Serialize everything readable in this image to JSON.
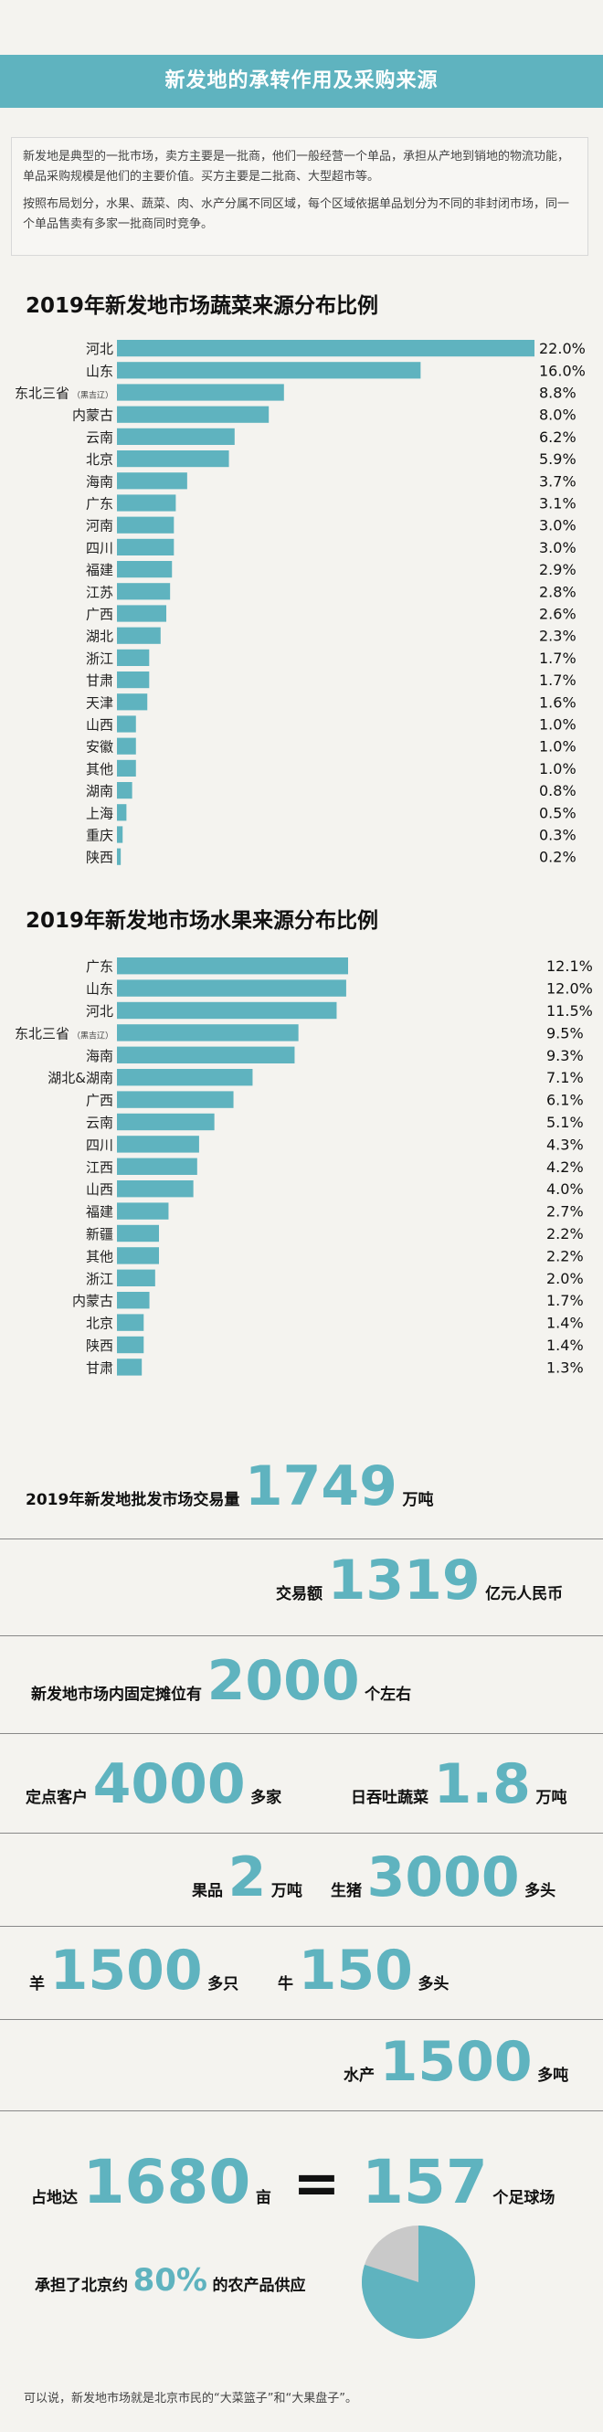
{
  "header": {
    "title": "新发地的承转作用及采购来源"
  },
  "intro": {
    "p1": "新发地是典型的一批市场，卖方主要是一批商，他们一般经营一个单品，承担从产地到销地的物流功能，单品采购规模是他们的主要价值。买方主要是二批商、大型超市等。",
    "p2": "按照布局划分，水果、蔬菜、肉、水产分属不同区域，每个区域依据单品划分为不同的非封闭市场，同一个单品售卖有多家一批商同时竞争。"
  },
  "chart_data": [
    {
      "type": "bar",
      "title": "2019年新发地市场蔬菜来源分布比例",
      "orientation": "horizontal",
      "value_suffix": "%",
      "categories": [
        "河北",
        "山东",
        "东北三省",
        "内蒙古",
        "云南",
        "北京",
        "海南",
        "广东",
        "河南",
        "四川",
        "福建",
        "江苏",
        "广西",
        "湖北",
        "浙江",
        "甘肃",
        "天津",
        "山西",
        "安徽",
        "其他",
        "湖南",
        "上海",
        "重庆",
        "陕西"
      ],
      "values": [
        22.0,
        16.0,
        8.8,
        8.0,
        6.2,
        5.9,
        3.7,
        3.1,
        3.0,
        3.0,
        2.9,
        2.8,
        2.6,
        2.3,
        1.7,
        1.7,
        1.6,
        1.0,
        1.0,
        1.0,
        0.8,
        0.5,
        0.3,
        0.2
      ],
      "notes": {
        "东北三省": "（黑吉辽）"
      },
      "color": "#5fb3bf"
    },
    {
      "type": "bar",
      "title": "2019年新发地市场水果来源分布比例",
      "orientation": "horizontal",
      "value_suffix": "%",
      "categories": [
        "广东",
        "山东",
        "河北",
        "东北三省",
        "海南",
        "湖北&湖南",
        "广西",
        "云南",
        "四川",
        "江西",
        "山西",
        "福建",
        "新疆",
        "其他",
        "浙江",
        "内蒙古",
        "北京",
        "陕西",
        "甘肃"
      ],
      "values": [
        12.1,
        12.0,
        11.5,
        9.5,
        9.3,
        7.1,
        6.1,
        5.1,
        4.3,
        4.2,
        4.0,
        2.7,
        2.2,
        2.2,
        2.0,
        1.7,
        1.4,
        1.4,
        1.3
      ],
      "notes": {
        "东北三省": "（黑吉辽）"
      },
      "color": "#5fb3bf"
    }
  ],
  "stats": {
    "s1": {
      "pre": "2019年新发地批发市场交易量",
      "num": "1749",
      "unit": "万吨"
    },
    "s2": {
      "pre": "交易额",
      "num": "1319",
      "unit": "亿元人民币"
    },
    "s3": {
      "pre": "新发地市场内固定摊位有",
      "num": "2000",
      "unit": "个左右"
    },
    "s4": {
      "pre": "定点客户",
      "num": "4000",
      "unit": "多家"
    },
    "s5": {
      "pre": "日吞吐蔬菜",
      "num": "1.8",
      "unit": "万吨"
    },
    "s6": {
      "pre": "果品",
      "num": "2",
      "unit": "万吨"
    },
    "s7": {
      "pre": "生猪",
      "num": "3000",
      "unit": "多头"
    },
    "s8": {
      "pre": "羊",
      "num": "1500",
      "unit": "多只"
    },
    "s9": {
      "pre": "牛",
      "num": "150",
      "unit": "多头"
    },
    "s10": {
      "pre": "水产",
      "num": "1500",
      "unit": "多吨"
    },
    "s11": {
      "pre": "占地达",
      "num": "1680",
      "unit": "亩",
      "eq": "=",
      "num2": "157",
      "unit2": "个足球场"
    },
    "s12": {
      "pre": "承担了北京约",
      "num": "80%",
      "post": "的农产品供应",
      "share": 0.8
    }
  },
  "footer": {
    "text": "可以说，新发地市场就是北京市民的“大菜篮子”和“大果盘子”。"
  },
  "colors": {
    "accent": "#5fb3bf",
    "pie_rest": "#c9c9c9",
    "background": "#f4f3ef"
  }
}
